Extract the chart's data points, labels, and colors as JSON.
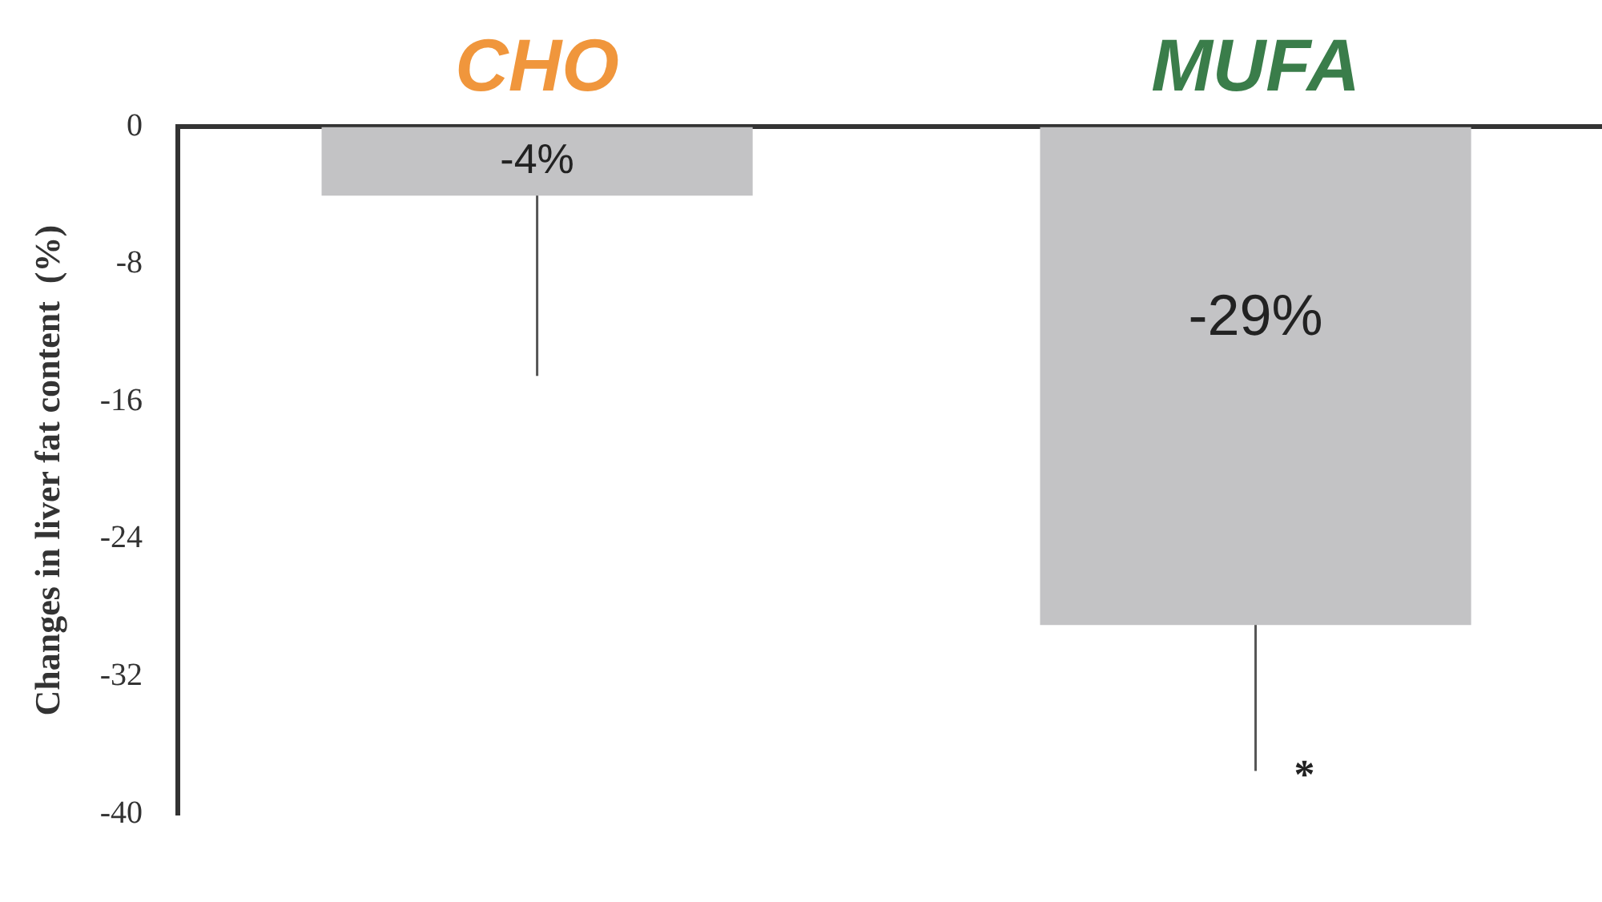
{
  "chart_data": {
    "type": "bar",
    "ylabel": "Changes in liver fat content  (%)",
    "categories": [
      "CHO",
      "MUFA"
    ],
    "values": [
      -4,
      -29
    ],
    "color": "#c3c3c5",
    "value_labels": [
      "-4%",
      "-29%"
    ],
    "errors": [
      [
        -14.5,
        -4
      ],
      [
        -37.5,
        -29
      ]
    ],
    "ylim": [
      -40,
      0
    ],
    "yticks": [
      0,
      -8,
      -16,
      -24,
      -32,
      -40
    ],
    "annotations": [
      {
        "text": "*",
        "x": "MUFA",
        "y": -37.5
      }
    ],
    "grid": false,
    "legend": false
  }
}
